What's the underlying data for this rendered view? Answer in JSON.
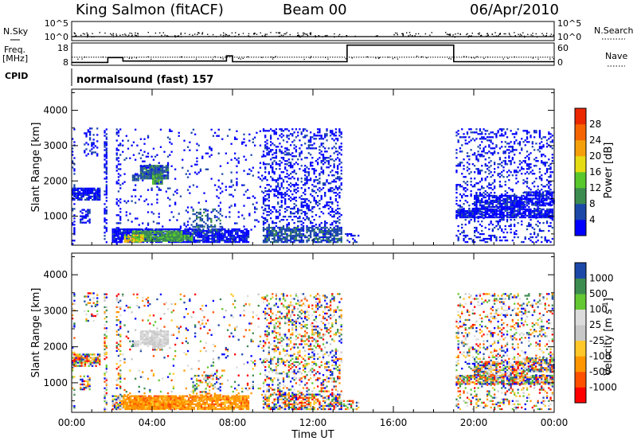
{
  "header": {
    "station": "King Salmon (fitACF)",
    "beam": "Beam 00",
    "date": "06/Apr/2010"
  },
  "left_labels": {
    "nsky": "N.Sky",
    "freq": "Freq.",
    "mhz": "[MHz]",
    "cpid": "CPID"
  },
  "right_labels": {
    "nsearch": "N.Search",
    "nave": "Nave"
  },
  "cpid_text": "normalsound (fast) 157",
  "colors": {
    "power": [
      "#0000ff",
      "#1c48a8",
      "#3c8c50",
      "#58c82c",
      "#e6dc14",
      "#f5a00a",
      "#f56400",
      "#eb2800",
      "#e60000"
    ],
    "velocity": [
      "#ff0000",
      "#ff5000",
      "#ff9600",
      "#ffc828",
      "#c8c8c8",
      "#dcdcdc",
      "#64c832",
      "#3c8c50",
      "#1c48a8",
      "#0000ff"
    ]
  },
  "chart_data": [
    {
      "type": "line",
      "panel": "noise",
      "y_ticks": [
        "10^5",
        "10^0"
      ],
      "y_ticks_right": [
        "10^5",
        "10^0"
      ],
      "series": [
        {
          "name": "N.Sky",
          "style": "solid"
        },
        {
          "name": "N.Search",
          "style": "dotted"
        }
      ]
    },
    {
      "type": "line",
      "panel": "freq-nave",
      "y_ticks_left": [
        "18",
        "8"
      ],
      "y_ticks_right": [
        "60",
        "0"
      ],
      "freq_series": {
        "name": "Freq.",
        "x": [
          0,
          24
        ],
        "y": [
          11.5,
          11.5
        ]
      },
      "nave_series": {
        "name": "Nave",
        "x": [
          0,
          1.8,
          1.8,
          2.55,
          2.55,
          7.7,
          7.7,
          8.0,
          8.0,
          13.7,
          13.7,
          16.2,
          16.2,
          19.0,
          19.0,
          24
        ],
        "y": [
          6,
          6,
          20,
          20,
          10,
          10,
          25,
          25,
          8,
          8,
          56,
          56,
          56,
          56,
          8,
          8
        ]
      }
    },
    {
      "type": "heatmap",
      "panel": "power",
      "xlabel": "",
      "ylabel": "Slant Range [km]",
      "ylim": [
        180,
        4600
      ],
      "y_ticks": [
        1000,
        2000,
        3000,
        4000
      ],
      "colorbar_label": "Power [dB]",
      "colorbar_ticks": [
        4,
        8,
        12,
        16,
        20,
        24,
        28
      ],
      "colorbar_range": [
        0,
        32
      ]
    },
    {
      "type": "heatmap",
      "panel": "velocity",
      "xlabel": "Time UT",
      "ylabel": "Slant Range [km]",
      "ylim": [
        180,
        4600
      ],
      "y_ticks": [
        1000,
        2000,
        3000,
        4000
      ],
      "x_ticks": [
        "00:00",
        "04:00",
        "08:00",
        "12:00",
        "16:00",
        "20:00",
        "00:00"
      ],
      "colorbar_label": "Velocity [m s",
      "colorbar_label_sup": "-1",
      "colorbar_label_end": "]",
      "colorbar_ticks": [
        "1000",
        "500",
        "100",
        "25",
        "-25",
        "-100",
        "-500",
        "-1000"
      ]
    }
  ]
}
